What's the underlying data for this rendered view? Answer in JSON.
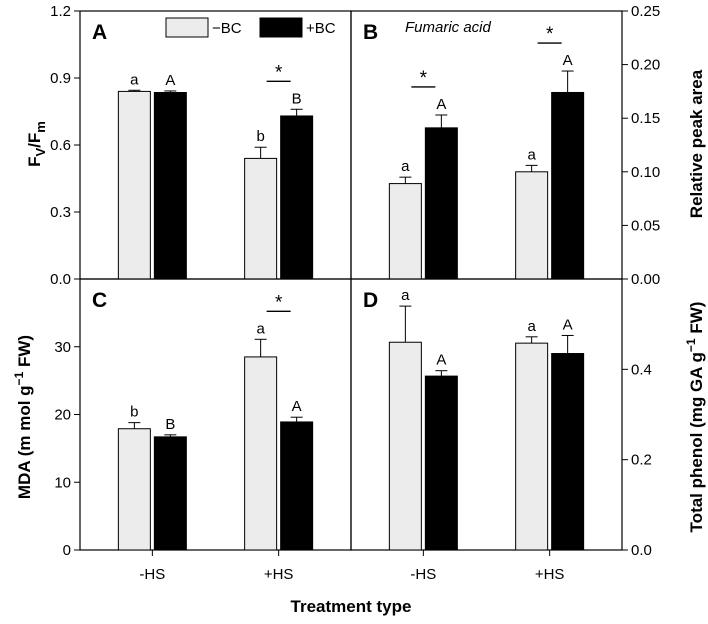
{
  "colors": {
    "minus_bc": "#ececec",
    "plus_bc": "#000000",
    "axis": "#000000"
  },
  "legend": {
    "minus_bc": "−BC",
    "plus_bc": "+BC"
  },
  "xlabel": "Treatment type",
  "chart_data": [
    {
      "id": "A",
      "panel_letter": "A",
      "type": "bar",
      "title": "",
      "categories": [
        "-HS",
        "+HS"
      ],
      "series": [
        {
          "name": "−BC",
          "values": [
            0.84,
            0.54
          ],
          "errors": [
            0.005,
            0.05
          ],
          "letters": [
            "a",
            "b"
          ]
        },
        {
          "name": "+BC",
          "values": [
            0.835,
            0.73
          ],
          "errors": [
            0.007,
            0.03
          ],
          "letters": [
            "A",
            "B"
          ]
        }
      ],
      "significance": [
        false,
        true
      ],
      "ylabel": {
        "main": "F",
        "sub1": "V",
        "mid": "/F",
        "sub2": "m"
      },
      "ylim": [
        0,
        1.2
      ],
      "yticks": [
        0.0,
        0.3,
        0.6,
        0.9,
        1.2
      ],
      "ytick_labels": [
        "0.0",
        "0.3",
        "0.6",
        "0.9",
        "1.2"
      ]
    },
    {
      "id": "B",
      "panel_letter": "B",
      "type": "bar",
      "title": "Fumaric acid",
      "categories": [
        "-HS",
        "+HS"
      ],
      "series": [
        {
          "name": "−BC",
          "values": [
            0.089,
            0.1
          ],
          "errors": [
            0.006,
            0.006
          ],
          "letters": [
            "a",
            "a"
          ]
        },
        {
          "name": "+BC",
          "values": [
            0.141,
            0.174
          ],
          "errors": [
            0.012,
            0.02
          ],
          "letters": [
            "A",
            "A"
          ]
        }
      ],
      "significance": [
        true,
        true
      ],
      "ylabel": "Relative peak area",
      "ylim": [
        0,
        0.25
      ],
      "yticks": [
        0.0,
        0.05,
        0.1,
        0.15,
        0.2,
        0.25
      ],
      "ytick_labels": [
        "0.00",
        "0.05",
        "0.10",
        "0.15",
        "0.20",
        "0.25"
      ]
    },
    {
      "id": "C",
      "panel_letter": "C",
      "type": "bar",
      "title": "",
      "categories": [
        "-HS",
        "+HS"
      ],
      "series": [
        {
          "name": "−BC",
          "values": [
            17.9,
            28.5
          ],
          "errors": [
            0.9,
            2.6
          ],
          "letters": [
            "b",
            "a"
          ]
        },
        {
          "name": "+BC",
          "values": [
            16.7,
            18.9
          ],
          "errors": [
            0.3,
            0.7
          ],
          "letters": [
            "B",
            "A"
          ]
        }
      ],
      "significance": [
        false,
        true
      ],
      "ylabel": {
        "main": "MDA (m mol g",
        "sup": "−1",
        "tail": " FW)"
      },
      "ylim": [
        0,
        40
      ],
      "yticks": [
        0,
        10,
        20,
        30
      ],
      "ytick_labels": [
        "0",
        "10",
        "20",
        "30"
      ]
    },
    {
      "id": "D",
      "panel_letter": "D",
      "type": "bar",
      "title": "",
      "categories": [
        "-HS",
        "+HS"
      ],
      "series": [
        {
          "name": "−BC",
          "values": [
            0.46,
            0.458
          ],
          "errors": [
            0.08,
            0.014
          ],
          "letters": [
            "a",
            "a"
          ]
        },
        {
          "name": "+BC",
          "values": [
            0.385,
            0.435
          ],
          "errors": [
            0.012,
            0.04
          ],
          "letters": [
            "A",
            "A"
          ]
        }
      ],
      "significance": [
        false,
        false
      ],
      "ylabel": {
        "main": "Total phenol (mg GA g",
        "sup": "−1",
        "tail": " FW)"
      },
      "ylim": [
        0,
        0.6
      ],
      "yticks": [
        0.0,
        0.2,
        0.4
      ],
      "ytick_labels": [
        "0.0",
        "0.2",
        "0.4"
      ]
    }
  ]
}
